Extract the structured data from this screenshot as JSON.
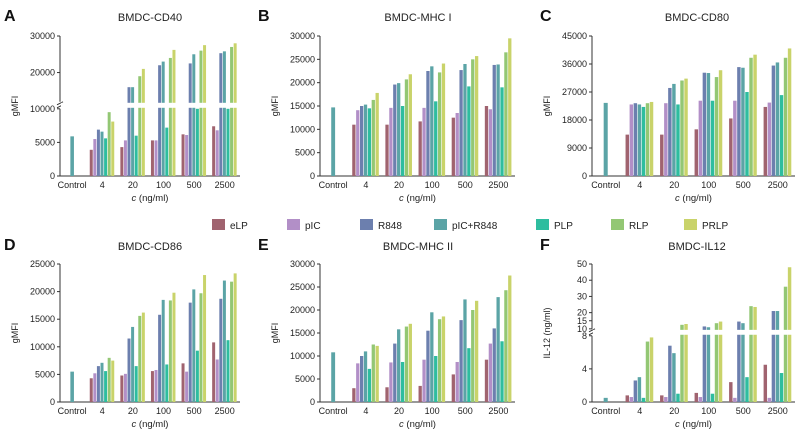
{
  "series": [
    {
      "name": "eLP",
      "color": "#a0636f"
    },
    {
      "name": "pIC",
      "color": "#b28fc7"
    },
    {
      "name": "R848",
      "color": "#6c7fae"
    },
    {
      "name": "pIC+R848",
      "color": "#5ba4a6"
    },
    {
      "name": "PLP",
      "color": "#2ebd9f"
    },
    {
      "name": "RLP",
      "color": "#93c774"
    },
    {
      "name": "PRLP",
      "color": "#c9d36a"
    }
  ],
  "chart_data": [
    {
      "letter": "A",
      "title": "BMDC-CD40",
      "type": "bar",
      "ylabel": "gMFI",
      "xlabel": "c (ng/ml)",
      "categories": [
        "Control",
        "4",
        "20",
        "100",
        "500",
        "2500"
      ],
      "control": 5900,
      "values": [
        [
          3900,
          5500,
          6900,
          6600,
          5600,
          9500,
          8100
        ],
        [
          4300,
          5300,
          16000,
          16000,
          6000,
          19000,
          21000
        ],
        [
          5300,
          5300,
          22000,
          23000,
          7200,
          24000,
          26200
        ],
        [
          6200,
          6100,
          22500,
          25000,
          10000,
          26000,
          27500
        ],
        [
          7400,
          6800,
          25300,
          25800,
          10000,
          27000,
          28000
        ]
      ],
      "yticks": [
        0,
        5000,
        10000,
        20000,
        30000
      ],
      "segments": [
        [
          0,
          10000,
          0,
          0.48
        ],
        [
          12000,
          30000,
          0.53,
          1.0
        ]
      ]
    },
    {
      "letter": "B",
      "title": "BMDC-MHC I",
      "type": "bar",
      "ylabel": "gMFI",
      "xlabel": "c (ng/ml)",
      "categories": [
        "Control",
        "4",
        "20",
        "100",
        "500",
        "2500"
      ],
      "control": 14700,
      "values": [
        [
          11000,
          14100,
          15000,
          15300,
          14500,
          16300,
          17800
        ],
        [
          11000,
          14600,
          19600,
          19900,
          15000,
          20700,
          21800
        ],
        [
          11700,
          14600,
          22500,
          23500,
          16000,
          22200,
          24100
        ],
        [
          12500,
          13500,
          22700,
          24000,
          19200,
          25000,
          25700
        ],
        [
          15000,
          14300,
          23800,
          23900,
          19000,
          26500,
          29500
        ]
      ],
      "yticks": [
        0,
        5000,
        10000,
        15000,
        20000,
        25000,
        30000
      ],
      "segments": [
        [
          0,
          30000,
          0,
          1.0
        ]
      ]
    },
    {
      "letter": "C",
      "title": "BMDC-CD80",
      "type": "bar",
      "ylabel": "gMFI",
      "xlabel": "c (ng/ml)",
      "categories": [
        "Control",
        "4",
        "20",
        "100",
        "500",
        "2500"
      ],
      "control": 23500,
      "values": [
        [
          13300,
          23000,
          23400,
          23000,
          22200,
          23400,
          23800
        ],
        [
          13300,
          23400,
          28300,
          29600,
          23000,
          30700,
          31300
        ],
        [
          15000,
          24200,
          33200,
          33100,
          24200,
          31800,
          34000
        ],
        [
          18500,
          24200,
          35000,
          34800,
          27000,
          38000,
          39000
        ],
        [
          22200,
          23600,
          35500,
          36500,
          26000,
          38000,
          41000
        ]
      ],
      "yticks": [
        0,
        9000,
        18000,
        27000,
        36000,
        45000
      ],
      "segments": [
        [
          0,
          45000,
          0,
          1.0
        ]
      ]
    },
    {
      "letter": "D",
      "title": "BMDC-CD86",
      "type": "bar",
      "ylabel": "gMFI",
      "xlabel": "c (ng/ml)",
      "categories": [
        "Control",
        "4",
        "20",
        "100",
        "500",
        "2500"
      ],
      "control": 5500,
      "values": [
        [
          4300,
          5200,
          6500,
          7100,
          5600,
          8000,
          7500
        ],
        [
          4800,
          5100,
          11500,
          13600,
          6500,
          15600,
          16200
        ],
        [
          5600,
          5800,
          15800,
          18500,
          6800,
          18400,
          19800
        ],
        [
          7000,
          5500,
          18000,
          20400,
          9300,
          19700,
          23000
        ],
        [
          10800,
          7700,
          18700,
          22000,
          11200,
          21800,
          23300
        ]
      ],
      "yticks": [
        0,
        5000,
        10000,
        15000,
        20000,
        25000
      ],
      "segments": [
        [
          0,
          25000,
          0,
          1.0
        ]
      ]
    },
    {
      "letter": "E",
      "title": "BMDC-MHC II",
      "type": "bar",
      "ylabel": "gMFI",
      "xlabel": "c (ng/ml)",
      "categories": [
        "Control",
        "4",
        "20",
        "100",
        "500",
        "2500"
      ],
      "control": 10800,
      "values": [
        [
          3000,
          8400,
          10000,
          11000,
          7200,
          12500,
          12200
        ],
        [
          3200,
          8600,
          12700,
          15800,
          8700,
          16400,
          17000
        ],
        [
          3500,
          9200,
          15500,
          19500,
          10000,
          18000,
          18600
        ],
        [
          6000,
          8700,
          17800,
          22300,
          11700,
          20000,
          22000
        ],
        [
          9200,
          12700,
          16000,
          22800,
          13200,
          24300,
          27500
        ]
      ],
      "yticks": [
        0,
        5000,
        10000,
        15000,
        20000,
        25000,
        30000
      ],
      "segments": [
        [
          0,
          30000,
          0,
          1.0
        ]
      ]
    },
    {
      "letter": "F",
      "title": "BMDC-IL12",
      "type": "bar",
      "ylabel": "IL-12 (ng/ml)",
      "xlabel": "c (ng/ml)",
      "categories": [
        "Control",
        "4",
        "20",
        "100",
        "500",
        "2500"
      ],
      "control": 0.5,
      "values": [
        [
          0.8,
          0.6,
          2.6,
          3.0,
          0.5,
          7.3,
          7.8
        ],
        [
          0.8,
          0.6,
          6.8,
          5.9,
          1.0,
          12.5,
          13.0
        ],
        [
          1.1,
          0.6,
          11.5,
          11.0,
          1.0,
          13.5,
          14.5
        ],
        [
          2.4,
          0.5,
          14.5,
          13.5,
          3.0,
          24.0,
          23.5
        ],
        [
          4.5,
          0.5,
          21.0,
          21.0,
          3.5,
          36.0,
          48.0
        ]
      ],
      "yticks": [
        0,
        4,
        8,
        10,
        15,
        20,
        30,
        40,
        50
      ],
      "segments": [
        [
          0,
          8,
          0,
          0.48
        ],
        [
          10,
          50,
          0.53,
          1.0
        ]
      ]
    }
  ]
}
